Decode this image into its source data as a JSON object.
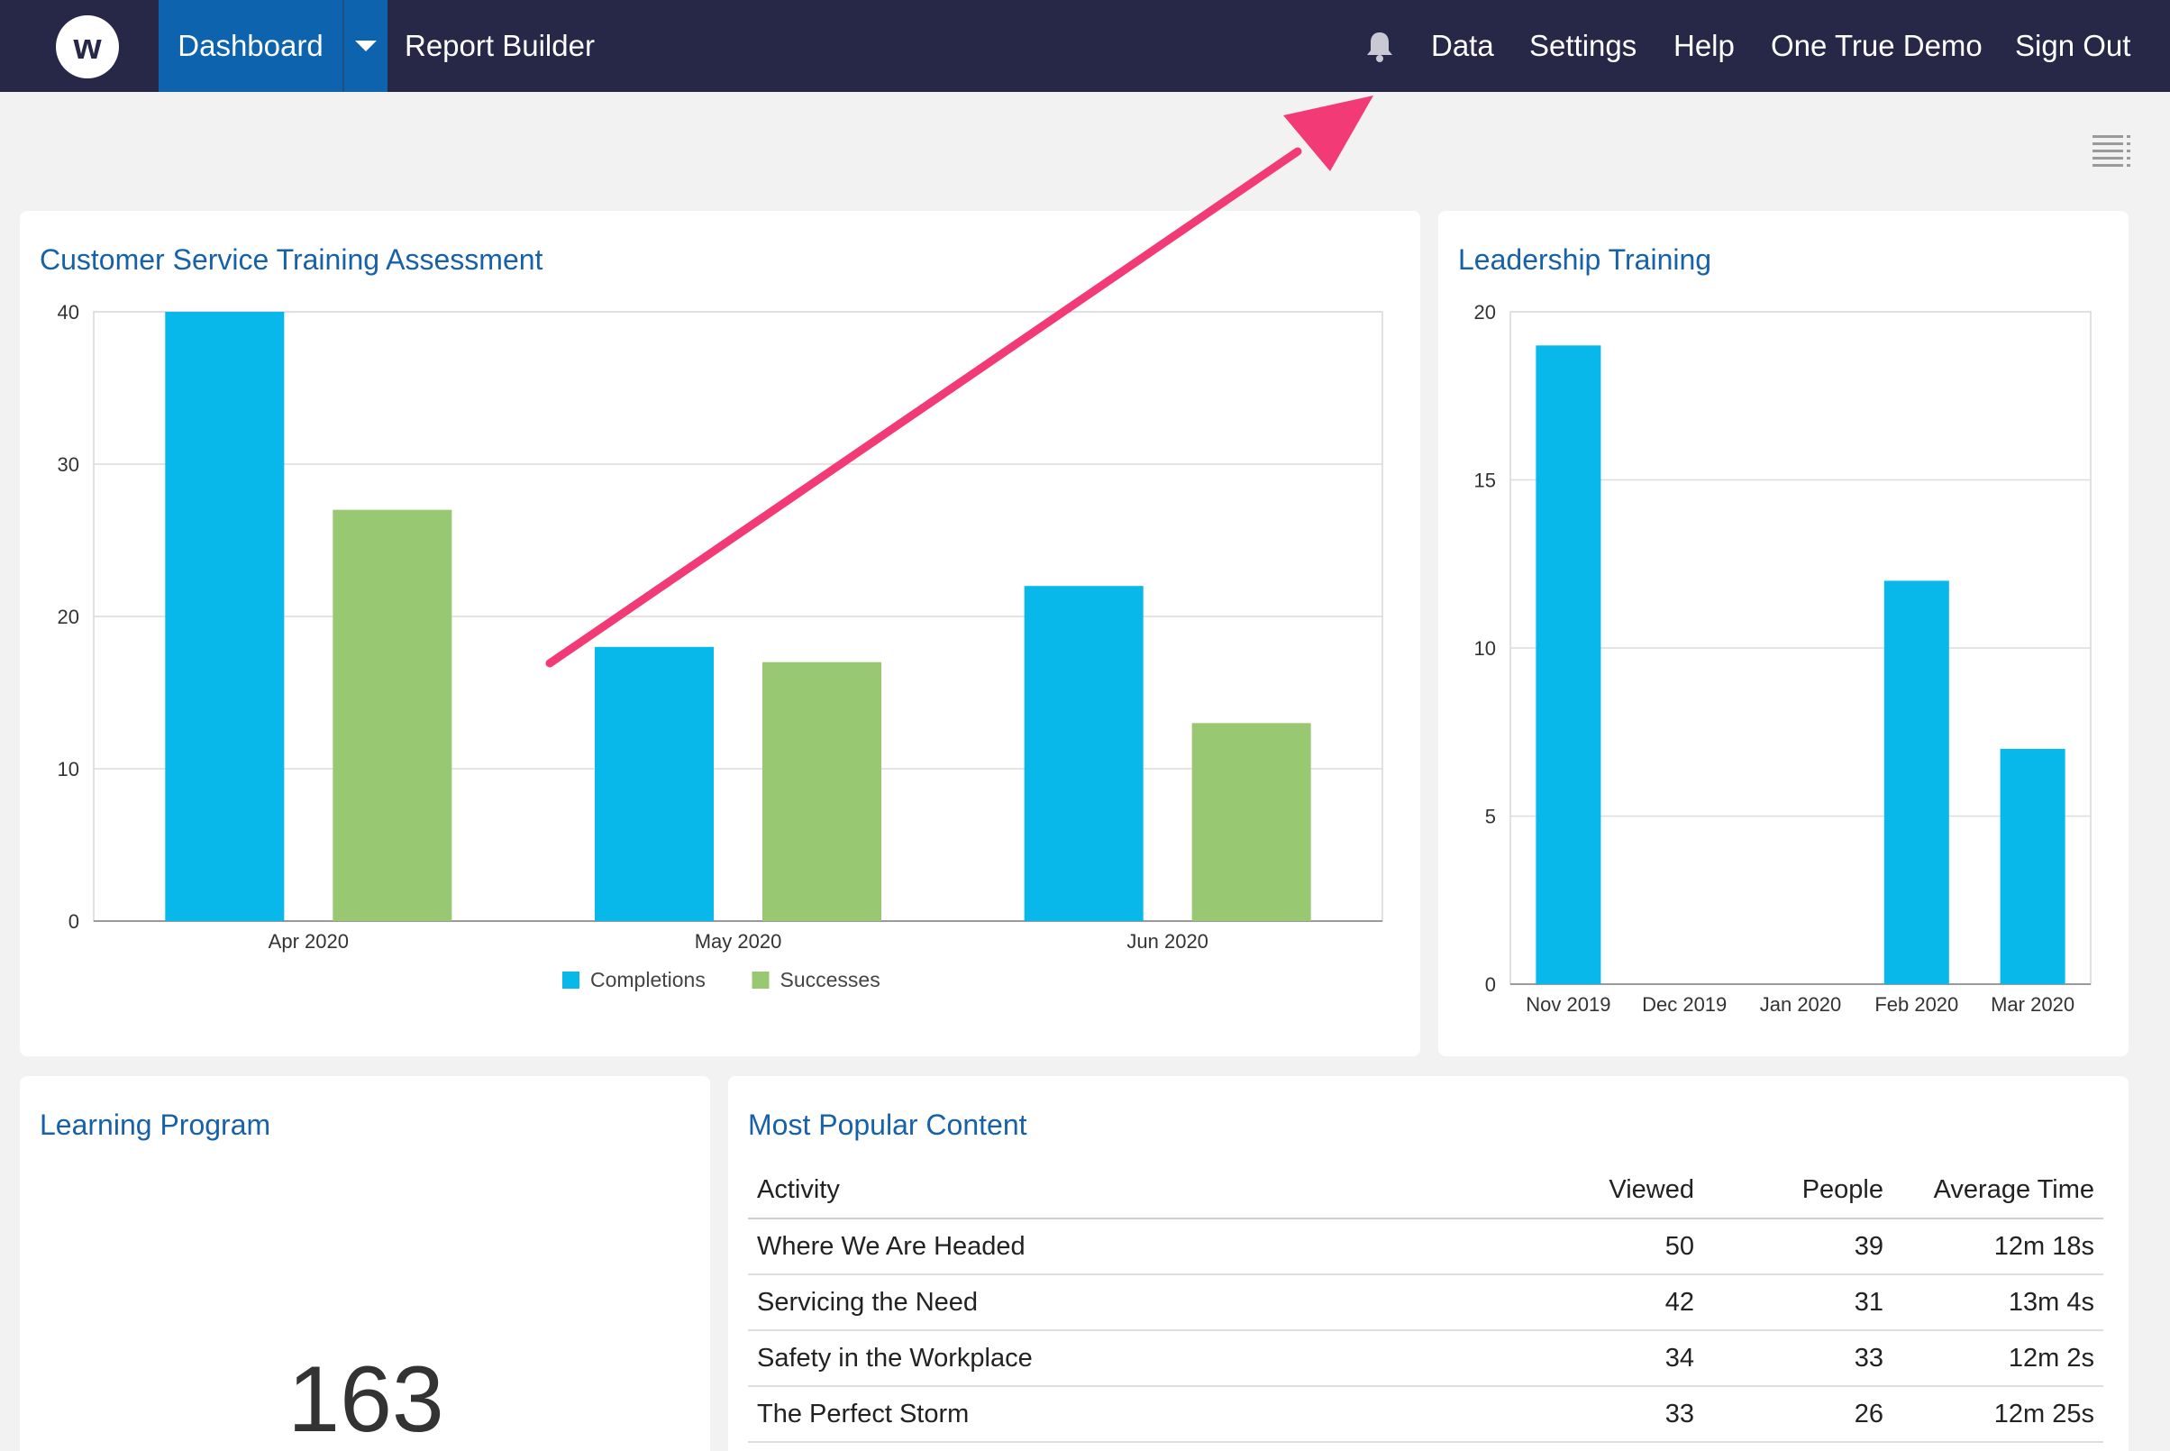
{
  "nav": {
    "logo_letter": "w",
    "dashboard_label": "Dashboard",
    "report_builder_label": "Report Builder",
    "data_label": "Data",
    "settings_label": "Settings",
    "help_label": "Help",
    "account_label": "One True Demo",
    "sign_out_label": "Sign Out"
  },
  "cards": {
    "customer_service": {
      "title": "Customer Service Training Assessment"
    },
    "leadership": {
      "title": "Leadership Training"
    },
    "learning_program": {
      "title": "Learning Program",
      "value": "163"
    },
    "popular": {
      "title": "Most Popular Content"
    }
  },
  "table": {
    "headers": [
      "Activity",
      "Viewed",
      "People",
      "Average Time"
    ],
    "rows": [
      {
        "activity": "Where We Are Headed",
        "viewed": "50",
        "people": "39",
        "avg_time": "12m 18s"
      },
      {
        "activity": "Servicing the Need",
        "viewed": "42",
        "people": "31",
        "avg_time": "13m 4s"
      },
      {
        "activity": "Safety in the Workplace",
        "viewed": "34",
        "people": "33",
        "avg_time": "12m 2s"
      },
      {
        "activity": "The Perfect Storm",
        "viewed": "33",
        "people": "26",
        "avg_time": "12m 25s"
      }
    ]
  },
  "colors": {
    "completions": "#08b8ea",
    "successes": "#99c872",
    "accent": "#1761a8",
    "annotation_arrow": "#f23a76"
  },
  "chart_data": [
    {
      "type": "bar",
      "categories": [
        "Apr 2020",
        "May 2020",
        "Jun 2020"
      ],
      "series": [
        {
          "name": "Completions",
          "values": [
            40,
            18,
            22
          ]
        },
        {
          "name": "Successes",
          "values": [
            27,
            17,
            13
          ]
        }
      ],
      "yticks": [
        0,
        10,
        20,
        30,
        40
      ],
      "ylim": [
        0,
        40
      ],
      "grid": true,
      "legend": "bottom"
    },
    {
      "type": "bar",
      "categories": [
        "Nov 2019",
        "Dec 2019",
        "Jan 2020",
        "Feb 2020",
        "Mar 2020"
      ],
      "series": [
        {
          "values": [
            19,
            0,
            0,
            12,
            7
          ]
        }
      ],
      "yticks": [
        0,
        5,
        10,
        15,
        20
      ],
      "ylim": [
        0,
        20
      ],
      "grid": true
    }
  ]
}
